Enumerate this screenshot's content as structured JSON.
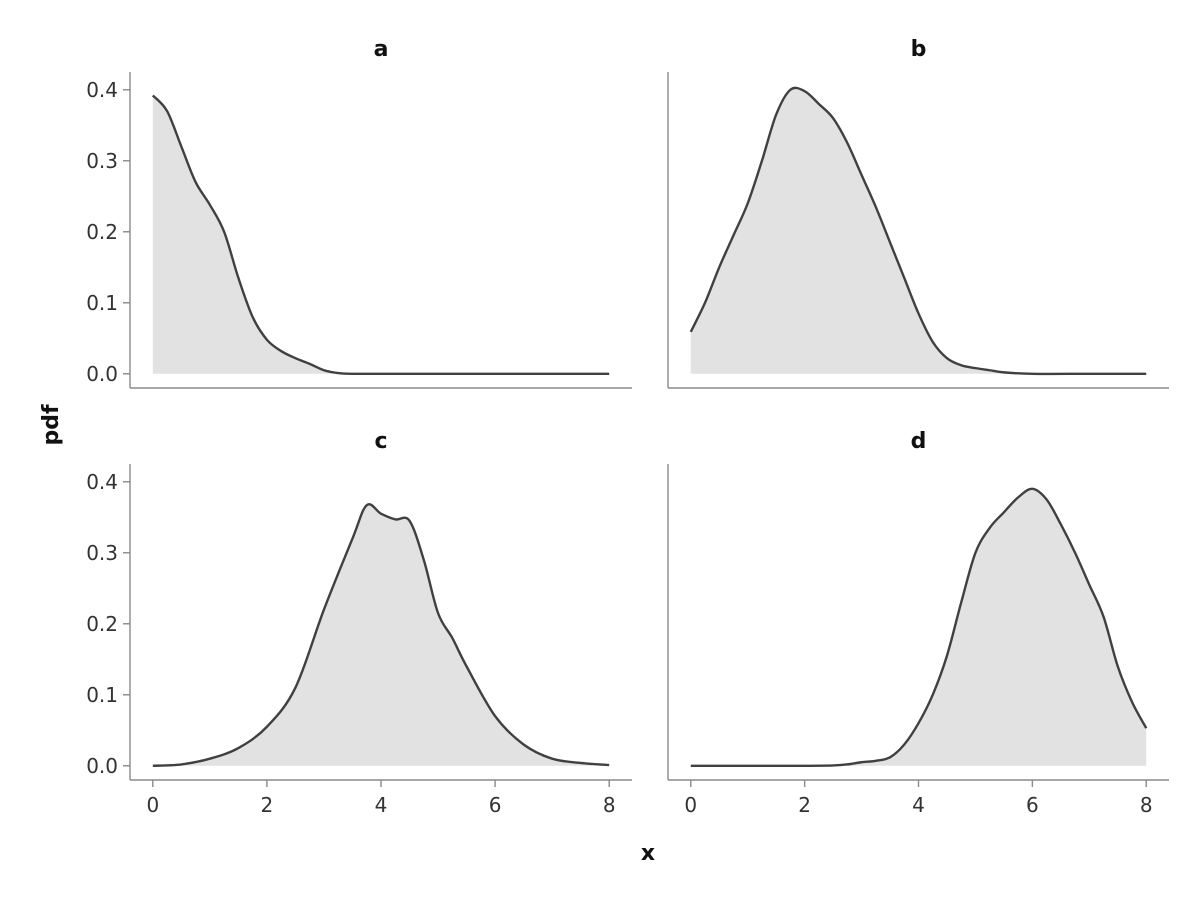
{
  "chart_data": {
    "type": "area",
    "xlabel": "x",
    "ylabel": "pdf",
    "line_color": "#404040",
    "fill_color": "#e2e2e2",
    "axis_color": "#8a8a8a",
    "x_ticks": [
      0,
      2,
      4,
      6,
      8
    ],
    "y_ticks": [
      0.0,
      0.1,
      0.2,
      0.3,
      0.4
    ],
    "y_tick_labels": [
      "0.0",
      "0.1",
      "0.2",
      "0.3",
      "0.4"
    ],
    "xlim": [
      -0.4,
      8.4
    ],
    "ylim": [
      -0.02,
      0.425
    ],
    "panels": [
      {
        "title": "a",
        "x": [
          0,
          0.25,
          0.5,
          0.75,
          1.0,
          1.25,
          1.5,
          1.75,
          2.0,
          2.25,
          2.5,
          2.75,
          3.0,
          3.25,
          3.5,
          4,
          5,
          6,
          7,
          8
        ],
        "y": [
          0.392,
          0.37,
          0.32,
          0.27,
          0.238,
          0.2,
          0.135,
          0.08,
          0.048,
          0.032,
          0.022,
          0.014,
          0.005,
          0.001,
          0,
          0,
          0,
          0,
          0,
          0
        ]
      },
      {
        "title": "b",
        "x": [
          0,
          0.25,
          0.5,
          0.75,
          1.0,
          1.25,
          1.5,
          1.75,
          2.0,
          2.25,
          2.5,
          2.75,
          3.0,
          3.25,
          3.5,
          3.75,
          4.0,
          4.25,
          4.5,
          4.75,
          5.0,
          5.25,
          5.5,
          6,
          7,
          8
        ],
        "y": [
          0.059,
          0.1,
          0.15,
          0.195,
          0.24,
          0.3,
          0.365,
          0.4,
          0.398,
          0.38,
          0.36,
          0.325,
          0.28,
          0.235,
          0.185,
          0.135,
          0.085,
          0.045,
          0.022,
          0.012,
          0.008,
          0.005,
          0.002,
          0,
          0,
          0
        ]
      },
      {
        "title": "c",
        "x": [
          0,
          0.5,
          1.0,
          1.5,
          2.0,
          2.5,
          3.0,
          3.5,
          3.75,
          4.0,
          4.25,
          4.5,
          4.75,
          5.0,
          5.25,
          5.5,
          6.0,
          6.5,
          7.0,
          7.5,
          8.0
        ],
        "y": [
          0,
          0.002,
          0.01,
          0.025,
          0.055,
          0.11,
          0.22,
          0.32,
          0.367,
          0.355,
          0.347,
          0.345,
          0.29,
          0.215,
          0.18,
          0.14,
          0.07,
          0.03,
          0.01,
          0.004,
          0.001
        ]
      },
      {
        "title": "d",
        "x": [
          0,
          1,
          2,
          2.5,
          2.75,
          3.0,
          3.25,
          3.5,
          3.75,
          4.0,
          4.25,
          4.5,
          4.75,
          5.0,
          5.25,
          5.5,
          5.75,
          6.0,
          6.25,
          6.5,
          6.75,
          7.0,
          7.25,
          7.5,
          7.75,
          8.0
        ],
        "y": [
          0,
          0,
          0,
          0.0005,
          0.002,
          0.005,
          0.007,
          0.012,
          0.03,
          0.06,
          0.1,
          0.155,
          0.23,
          0.3,
          0.335,
          0.357,
          0.378,
          0.39,
          0.375,
          0.34,
          0.3,
          0.255,
          0.21,
          0.14,
          0.09,
          0.053
        ]
      }
    ]
  }
}
